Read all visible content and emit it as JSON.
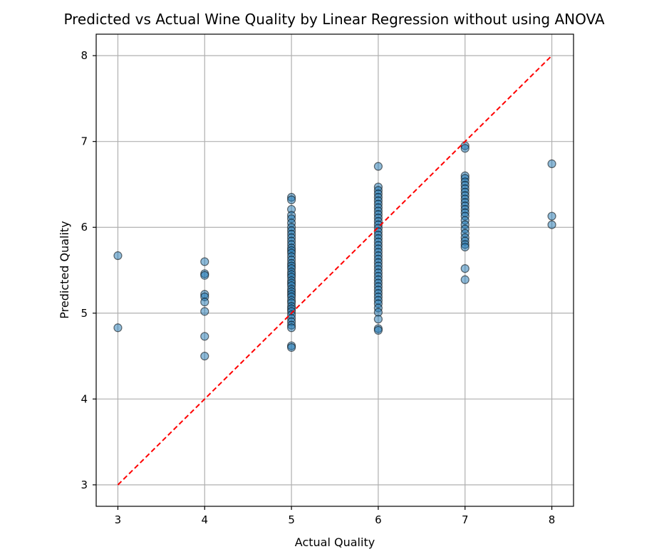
{
  "chart_data": {
    "type": "scatter",
    "title": "Predicted vs Actual Wine Quality by Linear Regression without using ANOVA",
    "xlabel": "Actual Quality",
    "ylabel": "Predicted Quality",
    "xlim": [
      2.75,
      8.25
    ],
    "ylim": [
      2.75,
      8.25
    ],
    "xticks": [
      "3",
      "4",
      "5",
      "6",
      "7",
      "8"
    ],
    "yticks": [
      "3",
      "4",
      "5",
      "6",
      "7",
      "8"
    ],
    "grid": true,
    "point_color": "#1f77b4",
    "reference_line": {
      "x": [
        3,
        8
      ],
      "y": [
        3,
        8
      ],
      "color": "#ff0000",
      "style": "dashed"
    },
    "series": [
      {
        "points": [
          [
            3,
            5.67
          ],
          [
            3,
            4.83
          ],
          [
            4,
            5.6
          ],
          [
            4,
            5.46
          ],
          [
            4,
            5.44
          ],
          [
            4,
            5.22
          ],
          [
            4,
            5.19
          ],
          [
            4,
            5.13
          ],
          [
            4,
            5.02
          ],
          [
            4,
            4.73
          ],
          [
            4,
            4.5
          ],
          [
            5,
            6.35
          ],
          [
            5,
            6.32
          ],
          [
            5,
            6.21
          ],
          [
            5,
            6.14
          ],
          [
            5,
            6.1
          ],
          [
            5,
            6.05
          ],
          [
            5,
            6.0
          ],
          [
            5,
            5.96
          ],
          [
            5,
            5.92
          ],
          [
            5,
            5.88
          ],
          [
            5,
            5.84
          ],
          [
            5,
            5.8
          ],
          [
            5,
            5.76
          ],
          [
            5,
            5.73
          ],
          [
            5,
            5.7
          ],
          [
            5,
            5.66
          ],
          [
            5,
            5.62
          ],
          [
            5,
            5.58
          ],
          [
            5,
            5.55
          ],
          [
            5,
            5.52
          ],
          [
            5,
            5.48
          ],
          [
            5,
            5.45
          ],
          [
            5,
            5.42
          ],
          [
            5,
            5.38
          ],
          [
            5,
            5.35
          ],
          [
            5,
            5.32
          ],
          [
            5,
            5.28
          ],
          [
            5,
            5.25
          ],
          [
            5,
            5.22
          ],
          [
            5,
            5.19
          ],
          [
            5,
            5.15
          ],
          [
            5,
            5.12
          ],
          [
            5,
            5.08
          ],
          [
            5,
            5.05
          ],
          [
            5,
            5.02
          ],
          [
            5,
            4.98
          ],
          [
            5,
            4.94
          ],
          [
            5,
            4.9
          ],
          [
            5,
            4.86
          ],
          [
            5,
            4.83
          ],
          [
            5,
            4.62
          ],
          [
            5,
            4.6
          ],
          [
            6,
            6.71
          ],
          [
            6,
            6.47
          ],
          [
            6,
            6.43
          ],
          [
            6,
            6.39
          ],
          [
            6,
            6.35
          ],
          [
            6,
            6.31
          ],
          [
            6,
            6.27
          ],
          [
            6,
            6.23
          ],
          [
            6,
            6.19
          ],
          [
            6,
            6.15
          ],
          [
            6,
            6.11
          ],
          [
            6,
            6.07
          ],
          [
            6,
            6.03
          ],
          [
            6,
            5.99
          ],
          [
            6,
            5.95
          ],
          [
            6,
            5.91
          ],
          [
            6,
            5.87
          ],
          [
            6,
            5.83
          ],
          [
            6,
            5.79
          ],
          [
            6,
            5.75
          ],
          [
            6,
            5.71
          ],
          [
            6,
            5.67
          ],
          [
            6,
            5.63
          ],
          [
            6,
            5.59
          ],
          [
            6,
            5.55
          ],
          [
            6,
            5.51
          ],
          [
            6,
            5.47
          ],
          [
            6,
            5.43
          ],
          [
            6,
            5.39
          ],
          [
            6,
            5.35
          ],
          [
            6,
            5.31
          ],
          [
            6,
            5.27
          ],
          [
            6,
            5.23
          ],
          [
            6,
            5.19
          ],
          [
            6,
            5.15
          ],
          [
            6,
            5.11
          ],
          [
            6,
            5.06
          ],
          [
            6,
            5.01
          ],
          [
            6,
            4.93
          ],
          [
            6,
            4.82
          ],
          [
            6,
            4.8
          ],
          [
            7,
            6.95
          ],
          [
            7,
            6.92
          ],
          [
            7,
            6.6
          ],
          [
            7,
            6.57
          ],
          [
            7,
            6.53
          ],
          [
            7,
            6.49
          ],
          [
            7,
            6.45
          ],
          [
            7,
            6.41
          ],
          [
            7,
            6.37
          ],
          [
            7,
            6.33
          ],
          [
            7,
            6.29
          ],
          [
            7,
            6.25
          ],
          [
            7,
            6.21
          ],
          [
            7,
            6.17
          ],
          [
            7,
            6.13
          ],
          [
            7,
            6.08
          ],
          [
            7,
            6.03
          ],
          [
            7,
            5.98
          ],
          [
            7,
            5.93
          ],
          [
            7,
            5.88
          ],
          [
            7,
            5.84
          ],
          [
            7,
            5.8
          ],
          [
            7,
            5.77
          ],
          [
            7,
            5.52
          ],
          [
            7,
            5.39
          ],
          [
            8,
            6.74
          ],
          [
            8,
            6.13
          ],
          [
            8,
            6.03
          ]
        ]
      }
    ]
  }
}
